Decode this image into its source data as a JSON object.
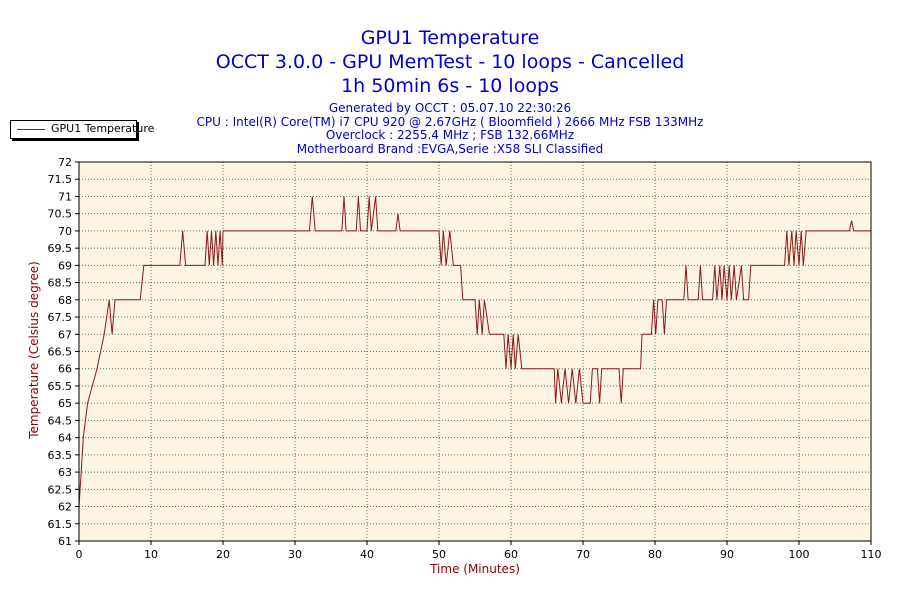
{
  "titles": {
    "line1": "GPU1 Temperature",
    "line2": "OCCT 3.0.0 - GPU MemTest - 10 loops - Cancelled",
    "line3": "1h 50min 6s - 10 loops"
  },
  "info": {
    "generated": "Generated by OCCT : 05.07.10 22:30:26",
    "cpu": "CPU : Intel(R) Core(TM) i7 CPU 920 @ 2.67GHz ( Bloomfield ) 2666 MHz FSB 133MHz",
    "overclock": "Overclock : 2255.4 MHz ; FSB 132.66MHz",
    "motherboard": "Motherboard Brand :EVGA,Serie :X58 SLI Classified"
  },
  "colors": {
    "line": "#8b1a1a",
    "plot_bg": "#fdf5e2",
    "grid": "#666666",
    "title": "#0000cc",
    "axis_label": "#8b0000"
  },
  "chart_data": {
    "type": "line",
    "title": "GPU1 Temperature",
    "xlabel": "Time (Minutes)",
    "ylabel": "Temperature (Celsius degree)",
    "xlim": [
      0,
      110
    ],
    "ylim": [
      61,
      72
    ],
    "xticks": [
      0,
      10,
      20,
      30,
      40,
      50,
      60,
      70,
      80,
      90,
      100,
      110
    ],
    "yticks": [
      61,
      61.5,
      62,
      62.5,
      63,
      63.5,
      64,
      64.5,
      65,
      65.5,
      66,
      66.5,
      67,
      67.5,
      68,
      68.5,
      69,
      69.5,
      70,
      70.5,
      71,
      71.5,
      72
    ],
    "grid": true,
    "legend_position": "top-left",
    "series": [
      {
        "name": "GPU1 Temperature",
        "points": [
          [
            0,
            62
          ],
          [
            0.3,
            63
          ],
          [
            0.6,
            64
          ],
          [
            1.2,
            65
          ],
          [
            2.5,
            66
          ],
          [
            3.5,
            67
          ],
          [
            4.2,
            68
          ],
          [
            4.6,
            67
          ],
          [
            5,
            68
          ],
          [
            8.5,
            68
          ],
          [
            9,
            69
          ],
          [
            14,
            69
          ],
          [
            14.4,
            70
          ],
          [
            14.8,
            69
          ],
          [
            17.5,
            69
          ],
          [
            17.8,
            70
          ],
          [
            18.1,
            69
          ],
          [
            18.4,
            70
          ],
          [
            18.7,
            69
          ],
          [
            19,
            70
          ],
          [
            19.3,
            69
          ],
          [
            19.6,
            70
          ],
          [
            19.9,
            69
          ],
          [
            20,
            70
          ],
          [
            32,
            70
          ],
          [
            32.4,
            71
          ],
          [
            32.8,
            70
          ],
          [
            36.5,
            70
          ],
          [
            36.8,
            71
          ],
          [
            37.1,
            70
          ],
          [
            38.5,
            70
          ],
          [
            38.8,
            71
          ],
          [
            39.1,
            70
          ],
          [
            40,
            70
          ],
          [
            40.3,
            71
          ],
          [
            40.6,
            70
          ],
          [
            41.2,
            71
          ],
          [
            41.5,
            70
          ],
          [
            44,
            70
          ],
          [
            44.3,
            70.5
          ],
          [
            44.6,
            70
          ],
          [
            50,
            70
          ],
          [
            50.3,
            69
          ],
          [
            50.6,
            70
          ],
          [
            51,
            69
          ],
          [
            51.5,
            70
          ],
          [
            52,
            69
          ],
          [
            53,
            69
          ],
          [
            53.3,
            68
          ],
          [
            55,
            68
          ],
          [
            55.3,
            67
          ],
          [
            55.6,
            68
          ],
          [
            56,
            67
          ],
          [
            56.3,
            68
          ],
          [
            57,
            67
          ],
          [
            59,
            67
          ],
          [
            59.3,
            66
          ],
          [
            59.6,
            67
          ],
          [
            60,
            66
          ],
          [
            60.3,
            67
          ],
          [
            60.6,
            66
          ],
          [
            61,
            67
          ],
          [
            61.5,
            66
          ],
          [
            66,
            66
          ],
          [
            66.2,
            65
          ],
          [
            66.5,
            66
          ],
          [
            67,
            65
          ],
          [
            67.5,
            66
          ],
          [
            68,
            65
          ],
          [
            68.5,
            66
          ],
          [
            69,
            65
          ],
          [
            69.5,
            66
          ],
          [
            70,
            65
          ],
          [
            71,
            65
          ],
          [
            71.3,
            66
          ],
          [
            72,
            66
          ],
          [
            72.3,
            65
          ],
          [
            72.6,
            66
          ],
          [
            75,
            66
          ],
          [
            75.3,
            65
          ],
          [
            75.6,
            66
          ],
          [
            78,
            66
          ],
          [
            78.2,
            67
          ],
          [
            79.5,
            67
          ],
          [
            79.8,
            68
          ],
          [
            80.1,
            67
          ],
          [
            80.4,
            68
          ],
          [
            81,
            68
          ],
          [
            81.3,
            67
          ],
          [
            81.6,
            68
          ],
          [
            84,
            68
          ],
          [
            84.3,
            69
          ],
          [
            84.6,
            68
          ],
          [
            86,
            68
          ],
          [
            86.3,
            69
          ],
          [
            86.6,
            68
          ],
          [
            88,
            68
          ],
          [
            88.3,
            69
          ],
          [
            88.6,
            68
          ],
          [
            89,
            69
          ],
          [
            89.3,
            68
          ],
          [
            89.6,
            69
          ],
          [
            90,
            68
          ],
          [
            90.3,
            69
          ],
          [
            90.6,
            68
          ],
          [
            91,
            69
          ],
          [
            91.3,
            68
          ],
          [
            92,
            69
          ],
          [
            92.3,
            68
          ],
          [
            93,
            68
          ],
          [
            93.3,
            69
          ],
          [
            98,
            69
          ],
          [
            98.3,
            70
          ],
          [
            98.6,
            69
          ],
          [
            99,
            70
          ],
          [
            99.3,
            69
          ],
          [
            99.6,
            70
          ],
          [
            100,
            69
          ],
          [
            100.3,
            70
          ],
          [
            100.6,
            69
          ],
          [
            101,
            70
          ],
          [
            107,
            70
          ],
          [
            107.3,
            70.3
          ],
          [
            107.6,
            70
          ],
          [
            110,
            70
          ]
        ]
      }
    ]
  }
}
